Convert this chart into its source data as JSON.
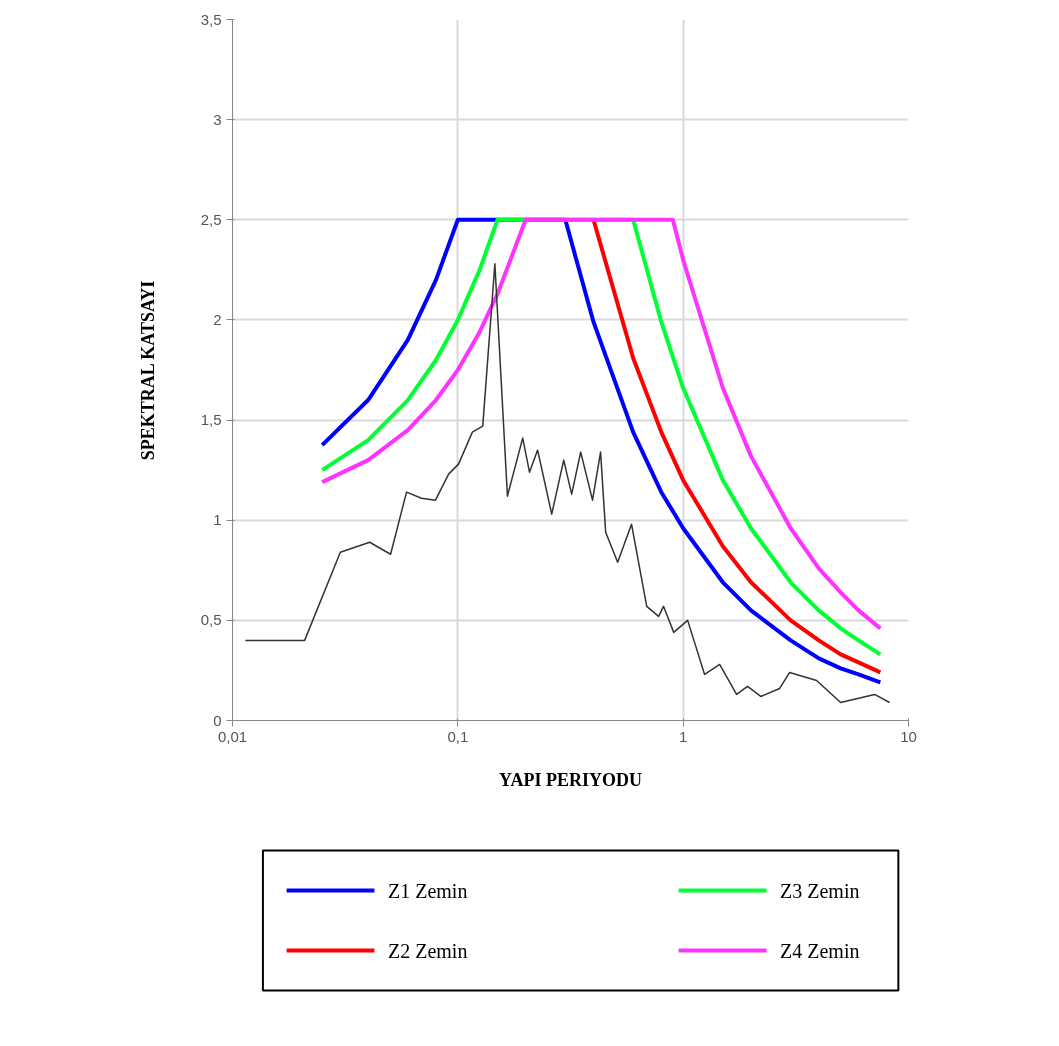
{
  "chart_data": {
    "type": "line",
    "xlabel": "YAPI PERIYODU",
    "ylabel": "SPEKTRAL KATSAYI",
    "log": "x",
    "grid": true,
    "legend": "bottom",
    "marker": "none",
    "line_style": "solid",
    "xlim": [
      0.01,
      10
    ],
    "ylim": [
      0,
      3.5
    ],
    "xticks": [
      {
        "value": 0.01,
        "label": "0,01"
      },
      {
        "value": 0.1,
        "label": "0,1"
      },
      1,
      10
    ],
    "yticks": [
      0,
      {
        "value": 0.5,
        "label": "0,5"
      },
      1,
      {
        "value": 1.5,
        "label": "1,5"
      },
      2,
      {
        "value": 2.5,
        "label": "2,5"
      },
      3,
      {
        "value": 3.5,
        "label": "3,5"
      }
    ],
    "series": [
      {
        "name": "Z1 Zemin",
        "color": "#0000ff",
        "x": [
          0.025,
          0.04,
          0.06,
          0.08,
          0.1,
          0.3,
          0.4,
          0.6,
          0.8,
          1,
          1.5,
          2,
          3,
          4,
          5,
          6,
          7.5
        ],
        "values": [
          1.375,
          1.6,
          1.9,
          2.2,
          2.5,
          2.5,
          1.99,
          1.44,
          1.14,
          0.96,
          0.69,
          0.55,
          0.4,
          0.31,
          0.26,
          0.23,
          0.19
        ]
      },
      {
        "name": "Z2 Zemin",
        "color": "#ff0000",
        "x": [
          0.4,
          0.6,
          0.8,
          1,
          1.5,
          2,
          3,
          4,
          5,
          6,
          7.5
        ],
        "values": [
          2.5,
          1.81,
          1.44,
          1.2,
          0.87,
          0.69,
          0.5,
          0.4,
          0.33,
          0.29,
          0.24
        ]
      },
      {
        "name": "Z3 Zemin",
        "color": "#00ff33",
        "x": [
          0.025,
          0.04,
          0.06,
          0.08,
          0.1,
          0.125,
          0.15,
          0.6,
          0.8,
          1,
          1.5,
          2,
          3,
          4,
          5,
          6,
          7.5
        ],
        "values": [
          1.25,
          1.4,
          1.6,
          1.8,
          2.0,
          2.25,
          2.5,
          2.5,
          1.99,
          1.66,
          1.2,
          0.96,
          0.69,
          0.55,
          0.46,
          0.4,
          0.33
        ]
      },
      {
        "name": "Z4 Zemin",
        "color": "#ff33ff",
        "x": [
          0.025,
          0.04,
          0.06,
          0.08,
          0.1,
          0.125,
          0.15,
          0.2,
          0.9,
          1,
          1.5,
          2,
          3,
          4,
          5,
          6,
          7.5
        ],
        "values": [
          1.19,
          1.3,
          1.45,
          1.6,
          1.75,
          1.94,
          2.13,
          2.5,
          2.5,
          2.3,
          1.66,
          1.32,
          0.96,
          0.76,
          0.64,
          0.55,
          0.46
        ]
      },
      {
        "color": "#333333",
        "x": [
          0.0114,
          0.0209,
          0.0301,
          0.0406,
          0.0503,
          0.0592,
          0.069,
          0.0796,
          0.091,
          0.1007,
          0.116,
          0.129,
          0.146,
          0.166,
          0.194,
          0.208,
          0.226,
          0.261,
          0.295,
          0.32,
          0.351,
          0.396,
          0.43,
          0.453,
          0.512,
          0.59,
          0.689,
          0.778,
          0.818,
          0.908,
          1.047,
          1.245,
          1.452,
          1.726,
          1.93,
          2.21,
          2.68,
          2.97,
          3.91,
          5.0,
          7.07,
          8.24
        ],
        "values": [
          0.4,
          0.4,
          0.84,
          0.89,
          0.83,
          1.14,
          1.11,
          1.1,
          1.23,
          1.28,
          1.44,
          1.47,
          2.28,
          1.12,
          1.41,
          1.24,
          1.35,
          1.03,
          1.3,
          1.13,
          1.34,
          1.1,
          1.34,
          0.94,
          0.79,
          0.98,
          0.57,
          0.52,
          0.57,
          0.44,
          0.5,
          0.23,
          0.28,
          0.13,
          0.17,
          0.12,
          0.16,
          0.24,
          0.2,
          0.09,
          0.13,
          0.09
        ]
      }
    ]
  }
}
